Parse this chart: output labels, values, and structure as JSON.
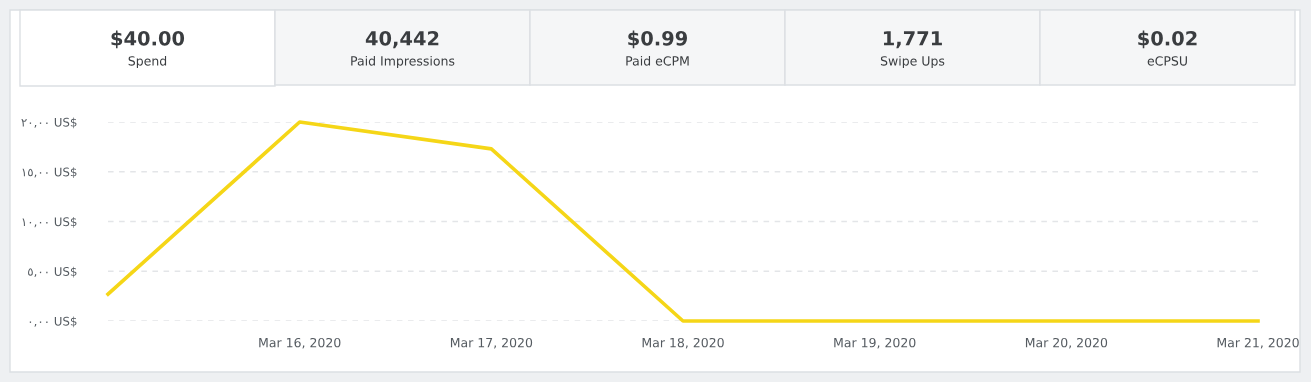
{
  "chart_data": [
    {
      "type": "other",
      "annotations": [
        "$40.00",
        "Spend",
        "40,442",
        "Paid Impressions",
        "$0.99",
        "Paid eCPM",
        "1,771",
        "Swipe Ups",
        "$0.02",
        "eCPSU"
      ]
    },
    {
      "type": "line",
      "x": [
        "2020-03-15",
        "2020-03-16",
        "2020-03-17",
        "2020-03-18",
        "2020-03-19",
        "2020-03-20",
        "2020-03-21"
      ],
      "series": [
        {
          "color": "#f5d617",
          "values": [
            2.7,
            20.0,
            17.3,
            0,
            0,
            0,
            0
          ]
        }
      ],
      "xlim": [
        "2020-03-15",
        "2020-03-21"
      ],
      "xticks": [
        {
          "value": "2020-03-16",
          "label": "Mar 16, 2020"
        },
        {
          "value": "2020-03-17",
          "label": "Mar 17, 2020"
        },
        {
          "value": "2020-03-18",
          "label": "Mar 18, 2020"
        },
        {
          "value": "2020-03-19",
          "label": "Mar 19, 2020"
        },
        {
          "value": "2020-03-20",
          "label": "Mar 20, 2020"
        },
        {
          "value": "2020-03-21",
          "label": "Mar 21, 2020"
        }
      ],
      "ylim": [
        0,
        20
      ],
      "yticks": [
        {
          "value": 0,
          "label": "٠,٠٠ US$"
        },
        {
          "value": 5,
          "label": "٥,٠٠ US$"
        },
        {
          "value": 10,
          "label": "١٠,٠٠ US$"
        },
        {
          "value": 15,
          "label": "١٥,٠٠ US$"
        },
        {
          "value": 20,
          "label": "٢٠,٠٠ US$"
        }
      ],
      "grid": "y",
      "marker": "none",
      "line_style": "solid"
    }
  ]
}
